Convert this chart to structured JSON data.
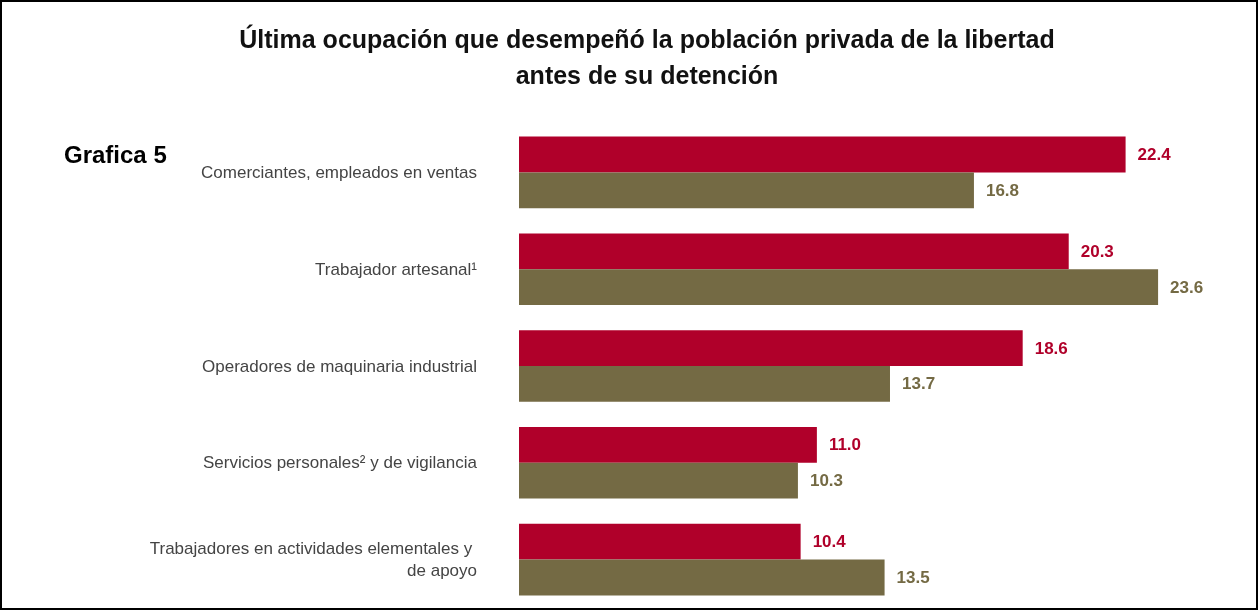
{
  "chart_data": {
    "type": "bar",
    "orientation": "horizontal",
    "title": "Última ocupación que desempeñó la población privada de la libertad\nantes de su detención",
    "annotations": [
      "Grafica 5"
    ],
    "categories": [
      "Comerciantes, empleados en ventas",
      "Trabajador artesanal¹",
      "Operadores de maquinaria industrial",
      "Servicios personales² y de vigilancia",
      "Trabajadores en actividades elementales y de apoyo"
    ],
    "series": [
      {
        "color": "#b0002a",
        "values": [
          22.4,
          20.3,
          18.6,
          11.0,
          10.4
        ],
        "value_labels": [
          "22.4",
          "20.3",
          "18.6",
          "11.0",
          "10.4"
        ]
      },
      {
        "color": "#746a44",
        "values": [
          16.8,
          23.6,
          13.7,
          10.3,
          13.5
        ],
        "value_labels": [
          "16.8",
          "23.6",
          "13.7",
          "10.3",
          "13.5"
        ]
      }
    ]
  }
}
